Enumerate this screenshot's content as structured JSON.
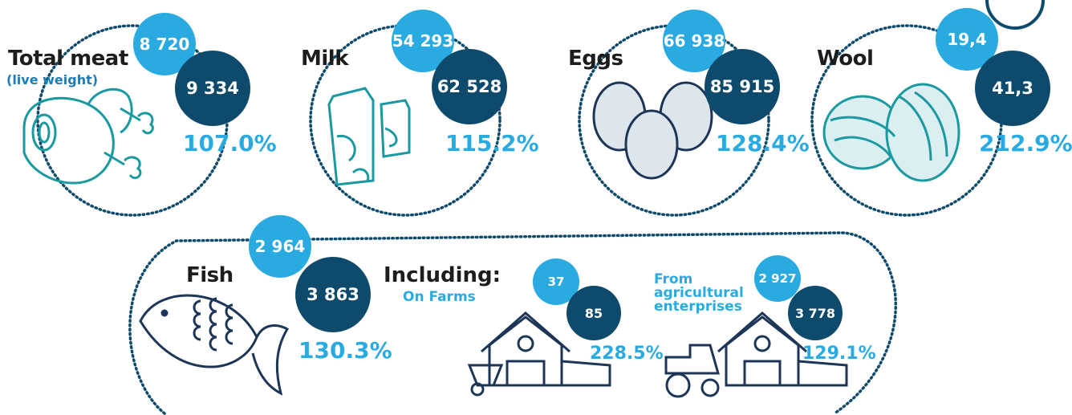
{
  "items": [
    {
      "label": "Total meat",
      "sublabel": "(live weight)",
      "previous": "8 720",
      "current": "9 334",
      "change": "107.0%"
    },
    {
      "label": "Milk",
      "previous": "54 293",
      "current": "62 528",
      "change": "115.2%"
    },
    {
      "label": "Eggs",
      "previous": "66 938",
      "current": "85 915",
      "change": "128.4%"
    },
    {
      "label": "Wool",
      "previous": "19,4",
      "current": "41,3",
      "change": "212.9%"
    }
  ],
  "fish": {
    "label": "Fish",
    "previous": "2 964",
    "current": "3 863",
    "change": "130.3%",
    "including": "Including:",
    "farms": {
      "label": "On Farms",
      "previous": "37",
      "current": "85",
      "change": "228.5%"
    },
    "enterprises": {
      "label": "From agricultural enterprises",
      "previous": "2 927",
      "current": "3 778",
      "change": "129.1%"
    }
  }
}
